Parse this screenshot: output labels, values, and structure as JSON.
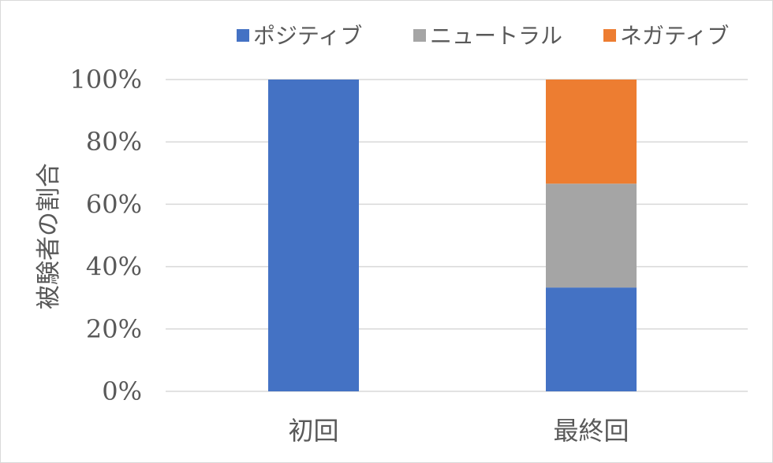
{
  "chart_data": {
    "type": "bar",
    "stacked": true,
    "percent": true,
    "categories": [
      "初回",
      "最終回"
    ],
    "series": [
      {
        "name": "ポジティブ",
        "values": [
          100,
          33.3
        ],
        "color": "#4472C4"
      },
      {
        "name": "ニュートラル",
        "values": [
          0,
          33.3
        ],
        "color": "#A5A5A5"
      },
      {
        "name": "ネガティブ",
        "values": [
          0,
          33.4
        ],
        "color": "#ED7D31"
      }
    ],
    "ylabel": "被験者の割合",
    "ylim": [
      0,
      100
    ],
    "yticks": [
      "0%",
      "20%",
      "40%",
      "60%",
      "80%",
      "100%"
    ],
    "grid": true,
    "legend_position": "top"
  }
}
